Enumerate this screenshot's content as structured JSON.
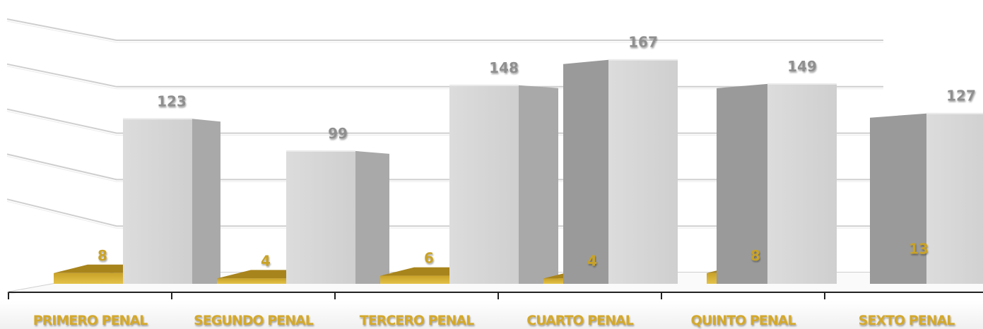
{
  "chart_data": {
    "type": "bar",
    "title": "",
    "xlabel": "",
    "ylabel": "",
    "categories": [
      "PRIMERO PENAL",
      "SEGUNDO PENAL",
      "TERCERO PENAL",
      "CUARTO PENAL",
      "QUINTO PENAL",
      "SEXTO PENAL"
    ],
    "series": [
      {
        "values": [
          8,
          4,
          6,
          4,
          8,
          13
        ],
        "color": "#c9a227"
      },
      {
        "values": [
          123,
          99,
          148,
          167,
          149,
          127
        ],
        "color": "#d0d0d0"
      }
    ],
    "ylim": [
      0,
      200
    ],
    "grid": true,
    "legend": "none",
    "style": "3d-column",
    "colors": {
      "category_label": "#d4a82a",
      "gold_value_label": "#c9a227",
      "gray_value_label": "#8f8f8f"
    }
  }
}
